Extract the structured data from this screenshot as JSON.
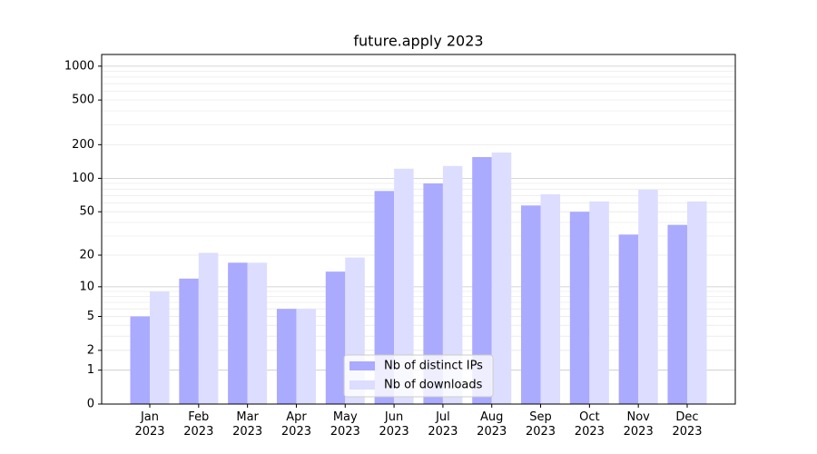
{
  "chart_data": {
    "type": "bar",
    "title": "future.apply 2023",
    "categories": [
      "Jan\n2023",
      "Feb\n2023",
      "Mar\n2023",
      "Apr\n2023",
      "May\n2023",
      "Jun\n2023",
      "Jul\n2023",
      "Aug\n2023",
      "Sep\n2023",
      "Oct\n2023",
      "Nov\n2023",
      "Dec\n2023"
    ],
    "series": [
      {
        "name": "Nb of distinct IPs",
        "color": "#aaaaff",
        "values": [
          5,
          12,
          17,
          6,
          14,
          77,
          90,
          155,
          57,
          50,
          31,
          38
        ]
      },
      {
        "name": "Nb of downloads",
        "color": "#ddddff",
        "values": [
          9,
          21,
          17,
          6,
          19,
          122,
          129,
          170,
          72,
          62,
          79,
          62
        ]
      }
    ],
    "yscale": "symlog",
    "ylim": [
      0,
      1270
    ],
    "yticks": [
      0,
      1,
      2,
      5,
      10,
      20,
      50,
      100,
      200,
      500,
      1000
    ],
    "grid": true,
    "legend": "lower center"
  }
}
